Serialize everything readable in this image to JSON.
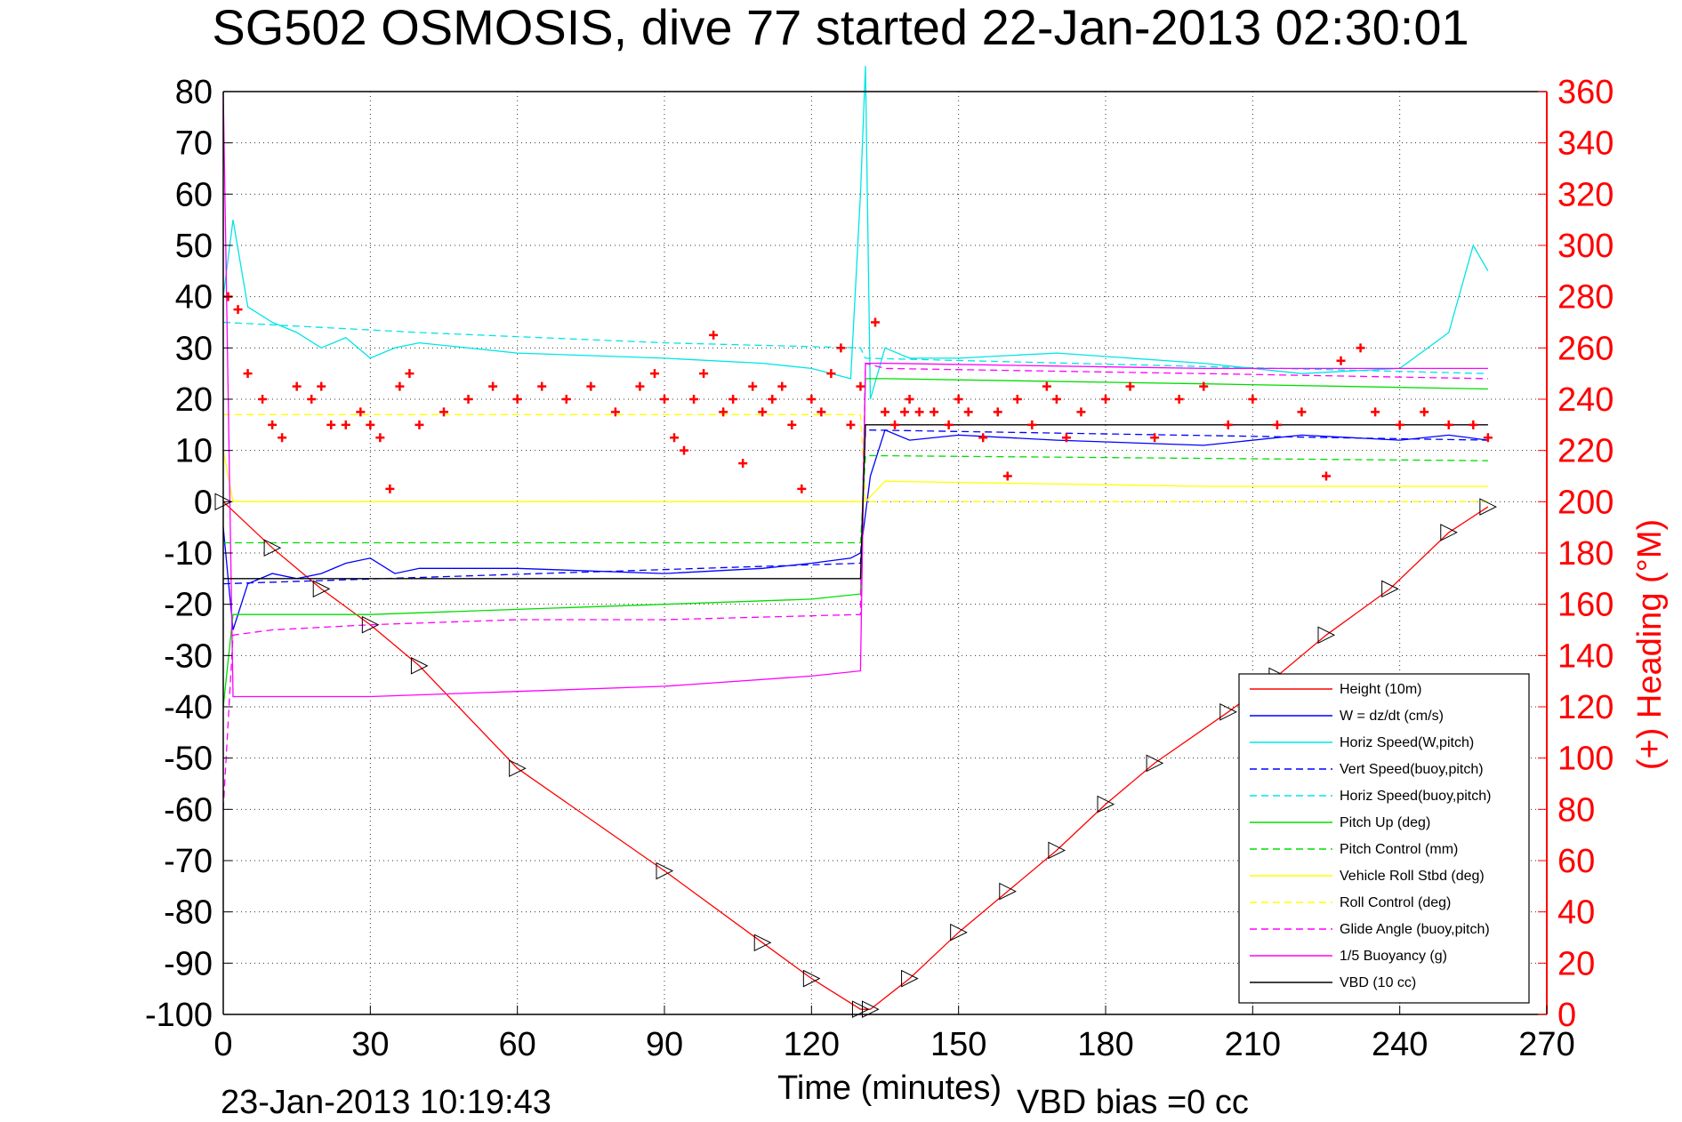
{
  "chart_data": {
    "type": "line",
    "title": "SG502 OSMOSIS, dive 77 started 22-Jan-2013 02:30:01",
    "xlabel": "Time (minutes)",
    "ylabel_right": "(+) Heading (°M)",
    "xlim": [
      0,
      270
    ],
    "ylim": [
      -100,
      80
    ],
    "ylim_right": [
      0,
      360
    ],
    "x_ticks": [
      "0",
      "30",
      "60",
      "90",
      "120",
      "150",
      "180",
      "210",
      "240",
      "270"
    ],
    "y_ticks": [
      "80",
      "70",
      "60",
      "50",
      "40",
      "30",
      "20",
      "10",
      "0",
      "-10",
      "-20",
      "-30",
      "-40",
      "-50",
      "-60",
      "-70",
      "-80",
      "-90",
      "-100"
    ],
    "y_right_ticks": [
      "360",
      "340",
      "320",
      "300",
      "280",
      "260",
      "240",
      "220",
      "200",
      "180",
      "160",
      "140",
      "120",
      "100",
      "80",
      "60",
      "40",
      "20",
      "0"
    ],
    "grid": true,
    "legend_position": "bottom-right",
    "footer_left": "23-Jan-2013 10:19:43",
    "footer_right": "VBD bias =0 cc",
    "series": [
      {
        "name": "Height (10m)",
        "color": "#ff0000",
        "style": "solid",
        "x": [
          0,
          10,
          20,
          30,
          40,
          60,
          90,
          110,
          120,
          130,
          132,
          140,
          150,
          160,
          170,
          180,
          190,
          205,
          215,
          225,
          238,
          250,
          258
        ],
        "y": [
          0,
          -9,
          -17,
          -24,
          -32,
          -52,
          -72,
          -86,
          -93,
          -99,
          -99,
          -93,
          -84,
          -76,
          -68,
          -59,
          -51,
          -41,
          -34,
          -26,
          -17,
          -6,
          -1
        ]
      },
      {
        "name": "W = dz/dt (cm/s)",
        "color": "#0000ff",
        "style": "solid",
        "x": [
          0,
          2,
          5,
          10,
          15,
          20,
          25,
          30,
          35,
          40,
          60,
          90,
          110,
          120,
          128,
          130,
          132,
          135,
          140,
          150,
          170,
          200,
          220,
          240,
          250,
          258
        ],
        "y": [
          -5,
          -25,
          -16,
          -14,
          -15,
          -14,
          -12,
          -11,
          -14,
          -13,
          -13,
          -14,
          -13,
          -12,
          -11,
          -10,
          5,
          14,
          12,
          13,
          12,
          11,
          13,
          12,
          13,
          12
        ]
      },
      {
        "name": "Horiz Speed(W,pitch)",
        "color": "#00e5e5",
        "style": "solid",
        "x": [
          0,
          2,
          5,
          10,
          15,
          20,
          25,
          30,
          35,
          40,
          60,
          90,
          110,
          120,
          128,
          130,
          131,
          132,
          135,
          140,
          150,
          170,
          200,
          220,
          240,
          250,
          255,
          258
        ],
        "y": [
          40,
          55,
          38,
          35,
          33,
          30,
          32,
          28,
          30,
          31,
          29,
          28,
          27,
          26,
          24,
          60,
          85,
          20,
          30,
          28,
          28,
          29,
          27,
          25,
          26,
          33,
          50,
          45
        ]
      },
      {
        "name": "Vert Speed(buoy,pitch)",
        "color": "#0000ff",
        "style": "dashed",
        "x": [
          0,
          130,
          131,
          258
        ],
        "y": [
          -16,
          -12,
          14,
          12
        ]
      },
      {
        "name": "Horiz Speed(buoy,pitch)",
        "color": "#00e5e5",
        "style": "dashed",
        "x": [
          0,
          40,
          90,
          130,
          131,
          258
        ],
        "y": [
          35,
          33,
          31,
          30,
          28,
          25
        ]
      },
      {
        "name": "Pitch Up (deg)",
        "color": "#00dd00",
        "style": "solid",
        "x": [
          0,
          2,
          10,
          30,
          60,
          90,
          120,
          130,
          131,
          135,
          200,
          258
        ],
        "y": [
          -40,
          -22,
          -22,
          -22,
          -21,
          -20,
          -19,
          -18,
          24,
          24,
          23,
          22
        ]
      },
      {
        "name": "Pitch Control (mm)",
        "color": "#00dd00",
        "style": "dashed",
        "x": [
          0,
          130,
          131,
          258
        ],
        "y": [
          -8,
          -8,
          9,
          8
        ]
      },
      {
        "name": "Vehicle Roll Stbd (deg)",
        "color": "#ffff00",
        "style": "solid",
        "x": [
          0,
          2,
          10,
          30,
          60,
          90,
          130,
          131,
          135,
          200,
          258
        ],
        "y": [
          10,
          0,
          0,
          0,
          0,
          0,
          0,
          0,
          4,
          3,
          3
        ]
      },
      {
        "name": "Roll Control (deg)",
        "color": "#ffff00",
        "style": "dashed",
        "x": [
          0,
          130,
          131,
          258
        ],
        "y": [
          17,
          17,
          0,
          0
        ]
      },
      {
        "name": "Glide Angle (buoy,pitch)",
        "color": "#ff00ff",
        "style": "dashed",
        "x": [
          0,
          2,
          10,
          30,
          60,
          90,
          130,
          131,
          135,
          200,
          258
        ],
        "y": [
          -60,
          -26,
          -25,
          -24,
          -23,
          -23,
          -22,
          27,
          26,
          25,
          24
        ]
      },
      {
        "name": "1/5 Buoyancy (g)",
        "color": "#ff00ff",
        "style": "solid",
        "x": [
          0,
          2,
          30,
          60,
          90,
          120,
          130,
          131,
          135,
          200,
          258
        ],
        "y": [
          80,
          -38,
          -38,
          -37,
          -36,
          -34,
          -33,
          27,
          27,
          26,
          26
        ]
      },
      {
        "name": "VBD (10 cc)",
        "color": "#000000",
        "style": "solid",
        "x": [
          0,
          130,
          131,
          258
        ],
        "y": [
          -15,
          -15,
          15,
          15
        ]
      },
      {
        "name": "(+) Heading (°M)",
        "color": "#ff0000",
        "style": "markers",
        "axis": "right",
        "x": [
          1,
          3,
          5,
          8,
          10,
          12,
          15,
          18,
          20,
          22,
          25,
          28,
          30,
          32,
          34,
          36,
          38,
          40,
          45,
          50,
          55,
          60,
          65,
          70,
          75,
          80,
          85,
          88,
          90,
          92,
          94,
          96,
          98,
          100,
          102,
          104,
          106,
          108,
          110,
          112,
          114,
          116,
          118,
          120,
          122,
          124,
          126,
          128,
          130,
          133,
          135,
          137,
          139,
          140,
          142,
          145,
          148,
          150,
          152,
          155,
          158,
          160,
          162,
          165,
          168,
          170,
          172,
          175,
          180,
          185,
          190,
          195,
          200,
          205,
          210,
          215,
          220,
          225,
          228,
          232,
          235,
          240,
          245,
          250,
          255,
          258
        ],
        "y": [
          280,
          275,
          250,
          240,
          230,
          225,
          245,
          240,
          245,
          230,
          230,
          235,
          230,
          225,
          205,
          245,
          250,
          230,
          235,
          240,
          245,
          240,
          245,
          240,
          245,
          235,
          245,
          250,
          240,
          225,
          220,
          240,
          250,
          265,
          235,
          240,
          215,
          245,
          235,
          240,
          245,
          230,
          205,
          240,
          235,
          250,
          260,
          230,
          245,
          270,
          235,
          230,
          235,
          240,
          235,
          235,
          230,
          240,
          235,
          225,
          235,
          210,
          240,
          230,
          245,
          240,
          225,
          235,
          240,
          245,
          225,
          240,
          245,
          230,
          240,
          230,
          235,
          210,
          255,
          260,
          235,
          230,
          235,
          230,
          230,
          225
        ]
      }
    ]
  }
}
